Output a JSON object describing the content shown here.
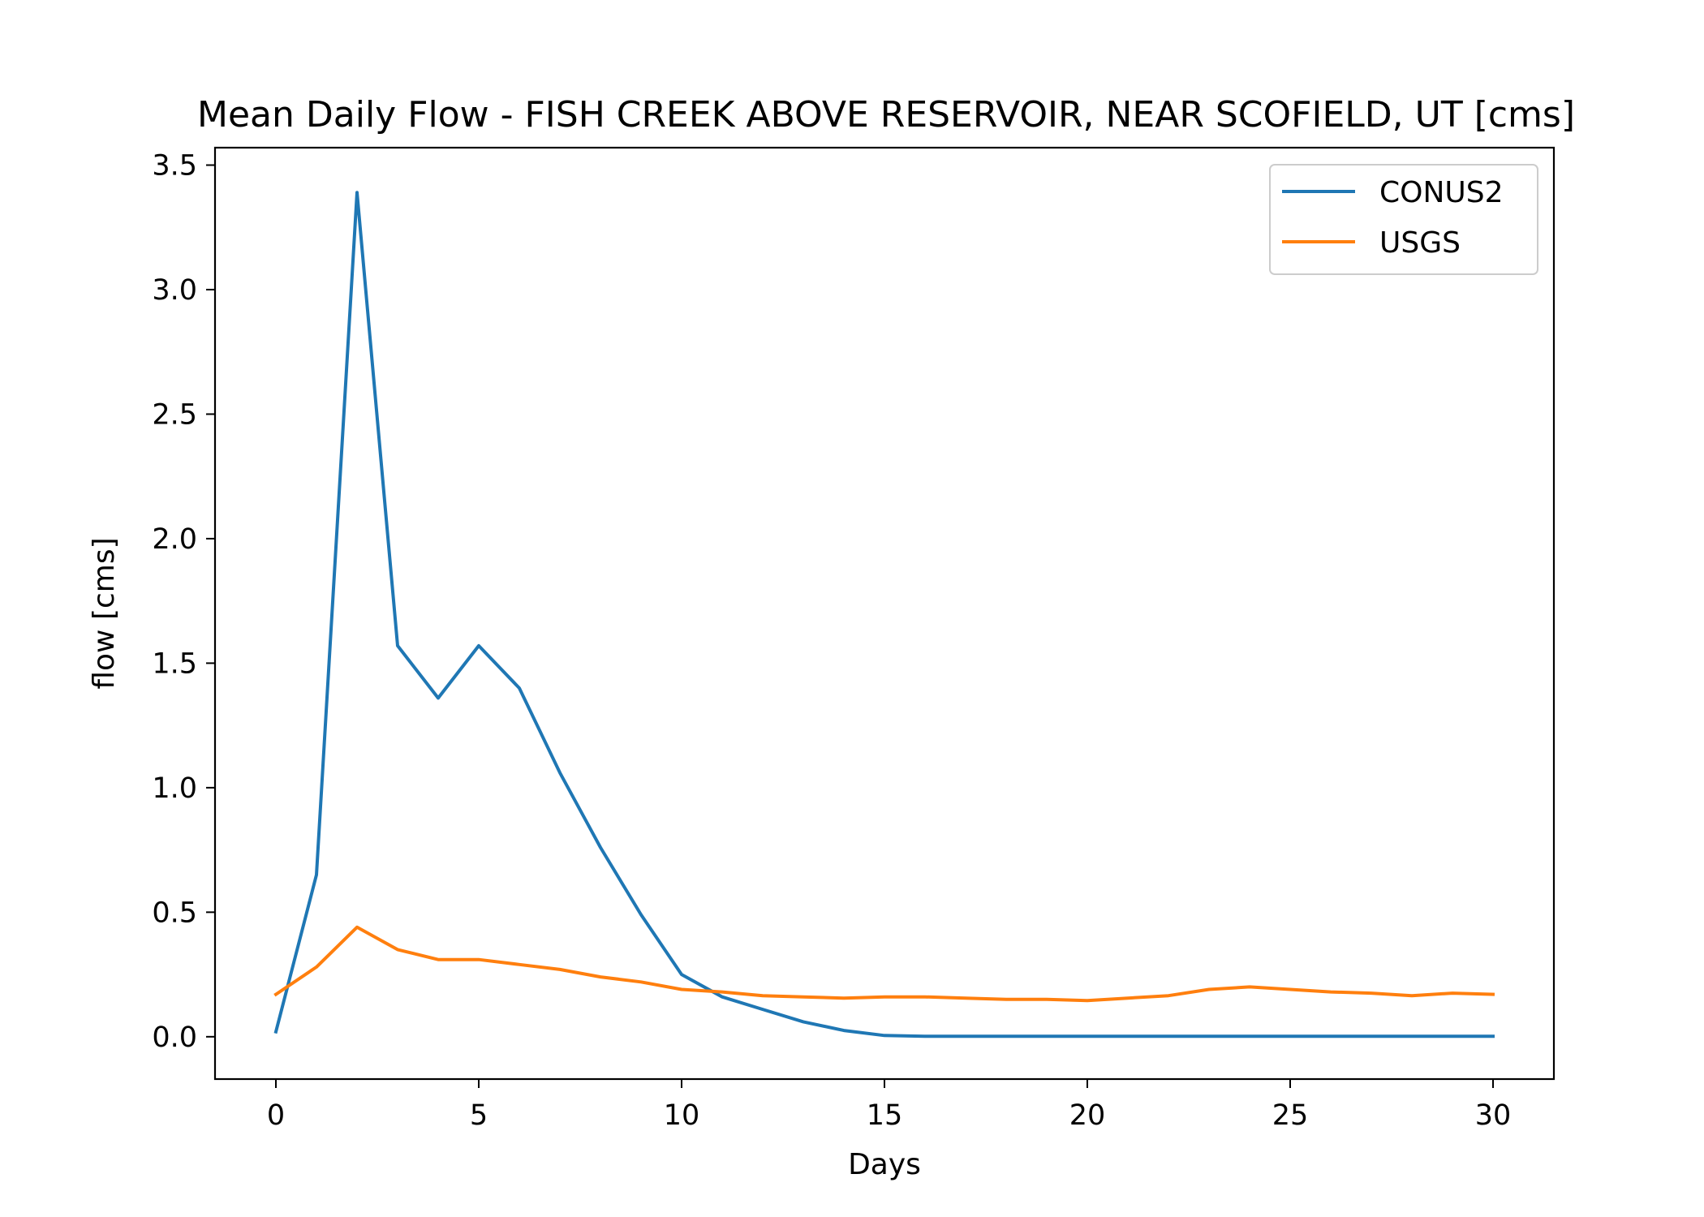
{
  "chart_data": {
    "type": "line",
    "title": "Mean Daily Flow - FISH CREEK ABOVE RESERVOIR, NEAR SCOFIELD, UT [cms]",
    "xlabel": "Days",
    "ylabel": "flow [cms]",
    "xlim": [
      -1.5,
      31.5
    ],
    "ylim": [
      -0.17,
      3.57
    ],
    "xticks": [
      0,
      5,
      10,
      15,
      20,
      25,
      30
    ],
    "xtick_labels": [
      "0",
      "5",
      "10",
      "15",
      "20",
      "25",
      "30"
    ],
    "yticks": [
      0.0,
      0.5,
      1.0,
      1.5,
      2.0,
      2.5,
      3.0,
      3.5
    ],
    "ytick_labels": [
      "0.0",
      "0.5",
      "1.0",
      "1.5",
      "2.0",
      "2.5",
      "3.0",
      "3.5"
    ],
    "grid": false,
    "legend": "upper right",
    "x": [
      0,
      1,
      2,
      3,
      4,
      5,
      6,
      7,
      8,
      9,
      10,
      11,
      12,
      13,
      14,
      15,
      16,
      17,
      18,
      19,
      20,
      21,
      22,
      23,
      24,
      25,
      26,
      27,
      28,
      29,
      30
    ],
    "series": [
      {
        "name": "CONUS2",
        "color": "#1f77b4",
        "values": [
          0.02,
          0.65,
          3.39,
          1.57,
          1.36,
          1.57,
          1.4,
          1.06,
          0.76,
          0.49,
          0.25,
          0.16,
          0.11,
          0.06,
          0.025,
          0.005,
          0.002,
          0.002,
          0.002,
          0.002,
          0.002,
          0.002,
          0.002,
          0.002,
          0.002,
          0.002,
          0.002,
          0.002,
          0.002,
          0.002,
          0.002
        ]
      },
      {
        "name": "USGS",
        "color": "#ff7f0e",
        "values": [
          0.17,
          0.28,
          0.44,
          0.35,
          0.31,
          0.31,
          0.29,
          0.27,
          0.24,
          0.22,
          0.19,
          0.18,
          0.165,
          0.16,
          0.155,
          0.16,
          0.16,
          0.155,
          0.15,
          0.15,
          0.145,
          0.155,
          0.165,
          0.19,
          0.2,
          0.19,
          0.18,
          0.175,
          0.165,
          0.175,
          0.17
        ]
      }
    ]
  }
}
